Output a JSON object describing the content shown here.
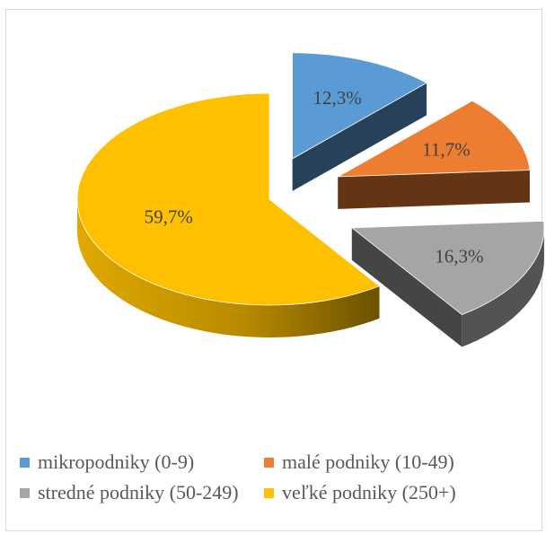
{
  "chart_data": {
    "type": "pie",
    "variant": "3d-exploded",
    "title": "",
    "categories": [
      "mikropodniky (0-9)",
      "malé podniky (10-49)",
      "stredné podniky (50-249)",
      "veľké podniky (250+)"
    ],
    "values": [
      12.3,
      11.7,
      16.3,
      59.7
    ],
    "labels": [
      "12,3%",
      "11,7%",
      "16,3%",
      "59,7%"
    ],
    "colors": [
      "#5B9BD5",
      "#ED7D31",
      "#A5A5A5",
      "#FFC000"
    ],
    "legend_position": "bottom"
  }
}
